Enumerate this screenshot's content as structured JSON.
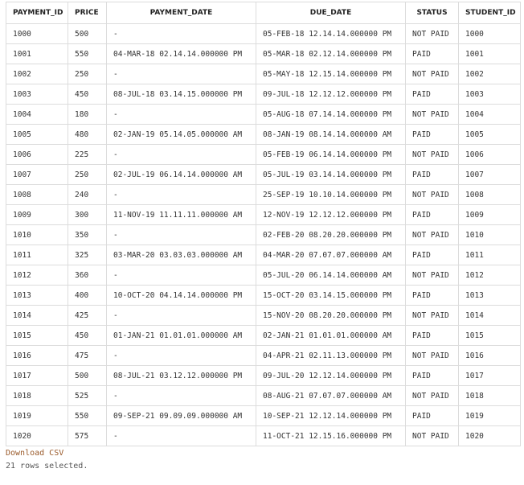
{
  "columns": [
    "PAYMENT_ID",
    "PRICE",
    "PAYMENT_DATE",
    "DUE_DATE",
    "STATUS",
    "STUDENT_ID"
  ],
  "rows": [
    [
      "1000",
      "500",
      "-",
      "05-FEB-18 12.14.14.000000 PM",
      "NOT PAID",
      "1000"
    ],
    [
      "1001",
      "550",
      "04-MAR-18 02.14.14.000000 PM",
      "05-MAR-18 02.12.14.000000 PM",
      "PAID",
      "1001"
    ],
    [
      "1002",
      "250",
      "-",
      "05-MAY-18 12.15.14.000000 PM",
      "NOT PAID",
      "1002"
    ],
    [
      "1003",
      "450",
      "08-JUL-18 03.14.15.000000 PM",
      "09-JUL-18 12.12.12.000000 PM",
      "PAID",
      "1003"
    ],
    [
      "1004",
      "180",
      "-",
      "05-AUG-18 07.14.14.000000 PM",
      "NOT PAID",
      "1004"
    ],
    [
      "1005",
      "480",
      "02-JAN-19 05.14.05.000000 AM",
      "08-JAN-19 08.14.14.000000 AM",
      "PAID",
      "1005"
    ],
    [
      "1006",
      "225",
      "-",
      "05-FEB-19 06.14.14.000000 PM",
      "NOT PAID",
      "1006"
    ],
    [
      "1007",
      "250",
      "02-JUL-19 06.14.14.000000 AM",
      "05-JUL-19 03.14.14.000000 PM",
      "PAID",
      "1007"
    ],
    [
      "1008",
      "240",
      "-",
      "25-SEP-19 10.10.14.000000 PM",
      "NOT PAID",
      "1008"
    ],
    [
      "1009",
      "300",
      "11-NOV-19 11.11.11.000000 AM",
      "12-NOV-19 12.12.12.000000 PM",
      "PAID",
      "1009"
    ],
    [
      "1010",
      "350",
      "-",
      "02-FEB-20 08.20.20.000000 PM",
      "NOT PAID",
      "1010"
    ],
    [
      "1011",
      "325",
      "03-MAR-20 03.03.03.000000 AM",
      "04-MAR-20 07.07.07.000000 AM",
      "PAID",
      "1011"
    ],
    [
      "1012",
      "360",
      "-",
      "05-JUL-20 06.14.14.000000 AM",
      "NOT PAID",
      "1012"
    ],
    [
      "1013",
      "400",
      "10-OCT-20 04.14.14.000000 PM",
      "15-OCT-20 03.14.15.000000 PM",
      "PAID",
      "1013"
    ],
    [
      "1014",
      "425",
      "-",
      "15-NOV-20 08.20.20.000000 PM",
      "NOT PAID",
      "1014"
    ],
    [
      "1015",
      "450",
      "01-JAN-21 01.01.01.000000 AM",
      "02-JAN-21 01.01.01.000000 AM",
      "PAID",
      "1015"
    ],
    [
      "1016",
      "475",
      "-",
      "04-APR-21 02.11.13.000000 PM",
      "NOT PAID",
      "1016"
    ],
    [
      "1017",
      "500",
      "08-JUL-21 03.12.12.000000 PM",
      "09-JUL-20 12.12.14.000000 PM",
      "PAID",
      "1017"
    ],
    [
      "1018",
      "525",
      "-",
      "08-AUG-21 07.07.07.000000 AM",
      "NOT PAID",
      "1018"
    ],
    [
      "1019",
      "550",
      "09-SEP-21 09.09.09.000000 AM",
      "10-SEP-21 12.12.14.000000 PM",
      "PAID",
      "1019"
    ],
    [
      "1020",
      "575",
      "-",
      "11-OCT-21 12.15.16.000000 PM",
      "NOT PAID",
      "1020"
    ]
  ],
  "footer": {
    "download_label": "Download CSV",
    "status_text": "21 rows selected."
  },
  "colors": {
    "link": "#9a5a2a",
    "border": "#dcdcdc"
  }
}
